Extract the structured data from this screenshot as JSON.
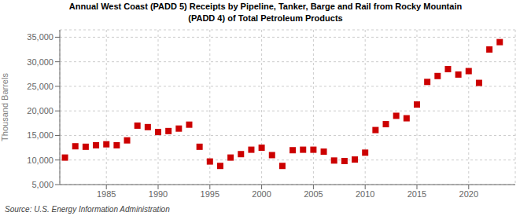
{
  "chart_data": {
    "type": "scatter",
    "title": "Annual West Coast (PADD 5) Receipts by Pipeline, Tanker, Barge and Rail from Rocky Mountain\n(PADD 4) of Total Petroleum Products",
    "ylabel": "Thousand Barrels",
    "source": "Source: U.S. Energy Information Administration",
    "marker": "square",
    "color": "#cc0000",
    "grid": true,
    "x": [
      1981,
      1982,
      1983,
      1984,
      1985,
      1986,
      1987,
      1988,
      1989,
      1990,
      1991,
      1992,
      1993,
      1994,
      1995,
      1996,
      1997,
      1998,
      1999,
      2000,
      2001,
      2002,
      2003,
      2004,
      2005,
      2006,
      2007,
      2008,
      2009,
      2010,
      2011,
      2012,
      2013,
      2014,
      2015,
      2016,
      2017,
      2018,
      2019,
      2020,
      2021,
      2022,
      2023
    ],
    "values": [
      10500,
      12800,
      12700,
      13000,
      13200,
      13000,
      14000,
      17000,
      16700,
      15700,
      15900,
      16400,
      17200,
      12700,
      9700,
      8800,
      10500,
      11200,
      12100,
      12500,
      11000,
      8800,
      12000,
      12100,
      12100,
      11700,
      9900,
      9800,
      10100,
      11500,
      16100,
      17300,
      19000,
      18500,
      21300,
      25900,
      27100,
      28500,
      27400,
      28100,
      25700,
      32500,
      34000
    ],
    "xlim": [
      1980.5,
      2024.5
    ],
    "xticks": [
      1985,
      1990,
      1995,
      2000,
      2005,
      2010,
      2015,
      2020
    ],
    "ylim": [
      5000,
      36500
    ],
    "yticks": [
      {
        "value": 5000,
        "label": "5,000"
      },
      {
        "value": 10000,
        "label": "10,000"
      },
      {
        "value": 15000,
        "label": "15,000"
      },
      {
        "value": 20000,
        "label": "20,000"
      },
      {
        "value": 25000,
        "label": "25,000"
      },
      {
        "value": 30000,
        "label": "30,000"
      },
      {
        "value": 35000,
        "label": "35,000"
      }
    ]
  }
}
